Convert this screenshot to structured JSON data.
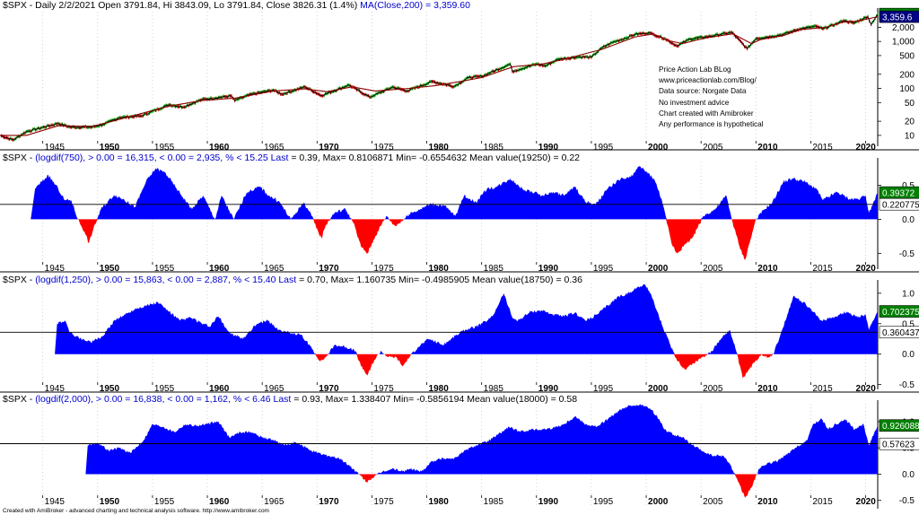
{
  "colors": {
    "background": "#ffffff",
    "positive_fill": "#0000ff",
    "negative_fill": "#ff0000",
    "price_line": "#000000",
    "ma_line": "#8b0000",
    "up_bar": "#00aa00",
    "down_bar": "#cc0000",
    "grid": "#c8c8c8",
    "last_label": "#008000",
    "ma_label": "#000080"
  },
  "footer": "Created with AmiBroker - advanced charting and technical analysis software. http://www.amibroker.com",
  "notes": [
    "Price Action Lab BLog",
    "www.priceactionlab.com/Blog/",
    "Data source: Norgate Data",
    "No investment advice",
    "Chart created with Amibroker",
    "Any performance is hypothetical"
  ],
  "x_ticks": [
    "1945",
    "1950",
    "1955",
    "1960",
    "1965",
    "1970",
    "1975",
    "1980",
    "1985",
    "1990",
    "1995",
    "2000",
    "2005",
    "2010",
    "2015",
    "2020"
  ],
  "x_ticks_bold": [
    "1950",
    "1960",
    "1970",
    "1980",
    "1990",
    "2000",
    "2010",
    "2020"
  ],
  "chart_data": [
    {
      "type": "line",
      "title": "$SPX - Daily 2/2/2021 Open 3791.84, Hi 3843.09, Lo 3791.84, Close 3826.31 (1.4%) MA(Close,200) = 3,359.60",
      "title_parts": [
        "$SPX - Daily 2/2/2021 Open 3791.84, Hi 3843.09, Lo 3791.84, Close 3826.31 (1.4%) ",
        "MA(Close,200) = 3,359.60"
      ],
      "y_scale": "log",
      "ylim": [
        7,
        4300
      ],
      "y_ticks": [
        "10",
        "20",
        "50",
        "100",
        "200",
        "500",
        "1,000",
        "2,000"
      ],
      "y_tick_values": [
        10,
        20,
        50,
        100,
        200,
        500,
        1000,
        2000
      ],
      "last_labels": [
        {
          "text": "3,826.31",
          "value": 3826.31,
          "kind": "last"
        },
        {
          "text": "3,359.6",
          "value": 3359.6,
          "kind": "ma"
        }
      ],
      "series": [
        {
          "name": "$SPX",
          "x": [
            1941.1,
            1942.3,
            1943.5,
            1946.4,
            1947.5,
            1949.5,
            1950.5,
            1952.0,
            1954.0,
            1956.5,
            1957.8,
            1959.5,
            1962.2,
            1962.5,
            1964.0,
            1966.0,
            1966.8,
            1968.9,
            1970.4,
            1972.9,
            1974.8,
            1976.9,
            1978.2,
            1980.5,
            1982.5,
            1983.8,
            1985.0,
            1987.6,
            1987.8,
            1990.0,
            1990.8,
            1992.0,
            1994.0,
            1995.0,
            1996.0,
            1997.0,
            1998.0,
            1999.0,
            2000.2,
            2000.7,
            2001.7,
            2002.8,
            2004.0,
            2005.5,
            2007.8,
            2009.2,
            2010.0,
            2011.5,
            2012.5,
            2014.0,
            2015.5,
            2016.1,
            2017.5,
            2018.0,
            2018.9,
            2020.2,
            2020.5,
            2021.1
          ],
          "y": [
            10,
            8,
            12,
            18,
            15,
            15,
            17,
            24,
            26,
            45,
            40,
            58,
            69,
            55,
            75,
            92,
            75,
            108,
            70,
            118,
            65,
            107,
            88,
            140,
            110,
            170,
            180,
            330,
            230,
            330,
            300,
            420,
            470,
            460,
            740,
            970,
            1150,
            1420,
            1520,
            1400,
            1150,
            800,
            1130,
            1250,
            1560,
            700,
            1150,
            1280,
            1420,
            1850,
            2100,
            1850,
            2450,
            2800,
            2450,
            3380,
            2300,
            3826.31
          ]
        },
        {
          "name": "MA(Close,200)",
          "x": [
            1941.1,
            1943.5,
            1946.4,
            1949.5,
            1952.0,
            1956.5,
            1959.5,
            1962.5,
            1966.0,
            1968.9,
            1970.9,
            1973.2,
            1975.3,
            1978.4,
            1980.8,
            1983.0,
            1985.0,
            1987.9,
            1990.5,
            1992.2,
            1996.0,
            1999.0,
            2000.6,
            2002.0,
            2003.3,
            2005.5,
            2007.9,
            2009.6,
            2010.5,
            2012.5,
            2014.0,
            2016.3,
            2018.0,
            2019.2,
            2021.1
          ],
          "y": [
            10,
            10,
            16,
            15.5,
            22,
            42,
            55,
            62,
            88,
            98,
            85,
            108,
            88,
            100,
            115,
            140,
            170,
            290,
            330,
            400,
            680,
            1250,
            1440,
            1050,
            900,
            1200,
            1450,
            900,
            1110,
            1330,
            1780,
            1980,
            2590,
            2690,
            3359.6
          ]
        }
      ]
    },
    {
      "type": "area",
      "title": "$SPX - (logdif(750),  > 0.00 = 16,315,  < 0.00 = 2,935,  % <  15.25 Last  = 0.39, Max= 0.8106871  Min= -0.6554632  Mean value(19250) = 0.22",
      "title_parts": [
        "$SPX - ",
        "(logdif(750),  > 0.00 = 16,315,  < 0.00 = 2,935,  % <  15.25 Last ",
        " = 0.39, Max= 0.8106871  Min= -0.6554632  Mean value(19250) = 0.22"
      ],
      "ylim": [
        -0.68,
        0.85
      ],
      "y_ticks": [
        "0.5",
        "0.0",
        "-0.5"
      ],
      "y_tick_values": [
        0.5,
        0.0,
        -0.5
      ],
      "reference_line": 0.22,
      "last_labels": [
        {
          "text": "0.39372",
          "value": 0.39372,
          "kind": "last"
        },
        {
          "text": "0.220775",
          "value": 0.220775,
          "kind": "mean"
        }
      ],
      "x": [
        1943.9,
        1944.3,
        1945.5,
        1946.4,
        1947.0,
        1947.6,
        1948.2,
        1948.8,
        1949.2,
        1949.6,
        1950.3,
        1951.5,
        1952.3,
        1953.4,
        1954.4,
        1955.3,
        1956.2,
        1957.2,
        1958.6,
        1959.6,
        1960.7,
        1961.3,
        1962.4,
        1963.6,
        1964.8,
        1965.6,
        1966.6,
        1967.6,
        1968.8,
        1969.5,
        1970.1,
        1970.4,
        1970.8,
        1971.6,
        1972.6,
        1973.3,
        1974.0,
        1974.6,
        1975.3,
        1976.3,
        1977.1,
        1977.9,
        1978.4,
        1979.4,
        1980.4,
        1981.6,
        1982.6,
        1983.4,
        1984.5,
        1985.5,
        1986.4,
        1987.6,
        1988.7,
        1989.6,
        1990.6,
        1991.5,
        1992.5,
        1993.5,
        1994.5,
        1995.4,
        1996.5,
        1997.5,
        1998.6,
        1999.4,
        2000.0,
        2000.7,
        2001.4,
        2002.3,
        2002.8,
        2003.7,
        2004.3,
        2005.2,
        2006.3,
        2007.3,
        2007.8,
        2008.5,
        2009.0,
        2009.5,
        2010.0,
        2010.8,
        2011.5,
        2012.5,
        2013.3,
        2014.5,
        2015.5,
        2016.1,
        2017.4,
        2018.5,
        2019.3,
        2020.0,
        2020.3,
        2020.7,
        2021.1
      ],
      "y": [
        0.0,
        0.45,
        0.65,
        0.45,
        0.28,
        0.28,
        0.0,
        -0.18,
        -0.35,
        -0.15,
        0.15,
        0.36,
        0.3,
        0.18,
        0.55,
        0.75,
        0.68,
        0.45,
        0.15,
        0.35,
        0.0,
        0.35,
        0.0,
        0.4,
        0.48,
        0.35,
        0.25,
        0.0,
        0.25,
        0.05,
        -0.18,
        -0.28,
        -0.08,
        0.1,
        0.15,
        -0.05,
        -0.4,
        -0.5,
        -0.25,
        0.05,
        -0.1,
        0.0,
        0.08,
        0.15,
        0.23,
        0.2,
        0.05,
        0.35,
        0.25,
        0.45,
        0.48,
        0.6,
        0.45,
        0.4,
        0.35,
        0.4,
        0.35,
        0.48,
        0.25,
        0.22,
        0.45,
        0.58,
        0.62,
        0.78,
        0.7,
        0.6,
        0.3,
        -0.35,
        -0.5,
        -0.35,
        -0.25,
        0.05,
        0.15,
        0.35,
        0.0,
        -0.4,
        -0.6,
        -0.3,
        0.0,
        0.15,
        0.25,
        0.55,
        0.6,
        0.55,
        0.45,
        0.28,
        0.4,
        0.3,
        0.3,
        0.35,
        0.1,
        0.25,
        0.39
      ]
    },
    {
      "type": "area",
      "title": "$SPX - (logdif(1,250),  > 0.00 = 15,863,  < 0.00 = 2,887,  % <  15.40 Last  = 0.70, Max= 1.160735  Min= -0.4985905  Mean value(18750) = 0.36",
      "title_parts": [
        "$SPX - ",
        "(logdif(1,250),  > 0.00 = 15,863,  < 0.00 = 2,887,  % <  15.40 Last ",
        " = 0.70, Max= 1.160735  Min= -0.4985905  Mean value(18750) = 0.36"
      ],
      "ylim": [
        -0.52,
        1.16
      ],
      "y_ticks": [
        "1.0",
        "0.5",
        "0.0",
        "-0.5"
      ],
      "y_tick_values": [
        1.0,
        0.5,
        0.0,
        -0.5
      ],
      "reference_line": 0.36,
      "last_labels": [
        {
          "text": "0.702375",
          "value": 0.702375,
          "kind": "last"
        },
        {
          "text": "0.360437",
          "value": 0.360437,
          "kind": "mean"
        }
      ],
      "x": [
        1946.1,
        1946.3,
        1947.0,
        1947.5,
        1948.5,
        1949.5,
        1950.5,
        1951.5,
        1952.5,
        1953.5,
        1954.5,
        1955.5,
        1956.5,
        1957.5,
        1958.5,
        1959.5,
        1960.2,
        1961.0,
        1962.0,
        1963.2,
        1964.5,
        1965.5,
        1966.5,
        1967.5,
        1968.5,
        1969.5,
        1970.3,
        1970.8,
        1971.6,
        1972.6,
        1973.5,
        1974.0,
        1974.6,
        1975.2,
        1975.8,
        1976.5,
        1977.2,
        1977.8,
        1978.4,
        1979.2,
        1980.2,
        1981.5,
        1982.6,
        1983.5,
        1984.5,
        1985.5,
        1986.0,
        1987.0,
        1987.8,
        1988.3,
        1989.5,
        1990.5,
        1991.5,
        1992.5,
        1993.5,
        1994.5,
        1995.5,
        1996.5,
        1997.5,
        1998.5,
        1999.2,
        1999.8,
        2000.4,
        2001.0,
        2001.6,
        2002.2,
        2002.8,
        2003.5,
        2004.3,
        2005.1,
        2006.0,
        2007.0,
        2007.6,
        2008.2,
        2008.8,
        2009.4,
        2010.0,
        2010.5,
        2011.1,
        2011.6,
        2012.2,
        2012.8,
        2013.4,
        2014.3,
        2015.2,
        2016.0,
        2017.2,
        2018.3,
        2019.3,
        2020.0,
        2020.3,
        2020.7,
        2021.1
      ],
      "y": [
        0.0,
        0.5,
        0.55,
        0.35,
        0.25,
        0.2,
        0.3,
        0.55,
        0.65,
        0.75,
        0.8,
        0.85,
        0.7,
        0.55,
        0.6,
        0.5,
        0.45,
        0.62,
        0.35,
        0.25,
        0.5,
        0.55,
        0.4,
        0.35,
        0.32,
        0.1,
        -0.12,
        -0.05,
        0.15,
        0.12,
        0.05,
        -0.2,
        -0.35,
        -0.1,
        0.05,
        -0.05,
        -0.05,
        -0.2,
        -0.05,
        0.12,
        0.25,
        0.15,
        0.3,
        0.4,
        0.45,
        0.55,
        0.62,
        1.0,
        0.6,
        0.55,
        0.7,
        0.72,
        0.65,
        0.62,
        0.68,
        0.55,
        0.65,
        0.8,
        0.95,
        1.0,
        1.1,
        1.15,
        1.0,
        0.7,
        0.4,
        0.15,
        -0.1,
        -0.25,
        -0.15,
        -0.05,
        0.05,
        0.3,
        0.4,
        0.05,
        -0.4,
        -0.25,
        -0.1,
        0.0,
        -0.05,
        0.0,
        0.3,
        0.6,
        0.95,
        0.85,
        0.7,
        0.55,
        0.62,
        0.7,
        0.6,
        0.65,
        0.4,
        0.55,
        0.7
      ]
    },
    {
      "type": "area",
      "title": "$SPX - (logdif(2,000),  > 0.00 = 16,838,  < 0.00 = 1,162,  % <  6.46 Last  = 0.93, Max= 1.338407  Min= -0.5856194  Mean value(18000) = 0.58",
      "title_parts": [
        "$SPX - ",
        "(logdif(2,000),  > 0.00 = 16,838,  < 0.00 = 1,162,  % <  6.46 Last ",
        " = 0.93, Max= 1.338407  Min= -0.5856194  Mean value(18000) = 0.58"
      ],
      "ylim": [
        -0.59,
        1.34
      ],
      "y_ticks": [
        "1.0",
        "0.5",
        "0.0",
        "-0.5"
      ],
      "y_tick_values": [
        1.0,
        0.5,
        0.0,
        -0.5
      ],
      "reference_line": 0.58,
      "last_labels": [
        {
          "text": "0.926088",
          "value": 0.926088,
          "kind": "last"
        },
        {
          "text": "0.57623",
          "value": 0.57623,
          "kind": "mean"
        }
      ],
      "x": [
        1948.9,
        1949.1,
        1950.0,
        1951.0,
        1952.0,
        1953.0,
        1954.2,
        1955.0,
        1956.0,
        1957.0,
        1958.0,
        1959.0,
        1960.0,
        1961.0,
        1962.0,
        1963.0,
        1964.0,
        1965.0,
        1966.0,
        1967.0,
        1968.0,
        1969.0,
        1970.0,
        1971.0,
        1972.0,
        1973.0,
        1973.8,
        1974.5,
        1975.2,
        1976.0,
        1977.0,
        1977.8,
        1978.5,
        1979.5,
        1980.5,
        1981.5,
        1982.5,
        1983.5,
        1984.5,
        1985.5,
        1986.5,
        1987.5,
        1988.5,
        1989.5,
        1990.5,
        1991.5,
        1992.5,
        1993.5,
        1994.5,
        1995.5,
        1996.5,
        1997.5,
        1998.5,
        1999.5,
        2000.3,
        2001.0,
        2001.7,
        2002.5,
        2003.3,
        2004.2,
        2005.0,
        2006.0,
        2007.0,
        2007.6,
        2008.3,
        2009.0,
        2009.6,
        2010.3,
        2011.0,
        2012.0,
        2013.0,
        2014.0,
        2014.7,
        2015.2,
        2016.0,
        2016.6,
        2017.3,
        2018.1,
        2019.0,
        2019.8,
        2020.3,
        2021.1
      ],
      "y": [
        0.0,
        0.55,
        0.6,
        0.45,
        0.5,
        0.4,
        0.65,
        0.95,
        0.9,
        0.8,
        0.95,
        0.92,
        0.95,
        1.0,
        0.7,
        0.8,
        0.8,
        0.7,
        0.65,
        0.55,
        0.6,
        0.5,
        0.4,
        0.35,
        0.3,
        0.15,
        0.0,
        -0.15,
        -0.05,
        0.05,
        0.1,
        0.05,
        0.1,
        0.05,
        0.25,
        0.3,
        0.3,
        0.45,
        0.55,
        0.62,
        0.75,
        0.9,
        0.8,
        0.85,
        0.85,
        0.88,
        0.95,
        1.1,
        0.95,
        0.9,
        1.05,
        1.2,
        1.3,
        1.33,
        1.25,
        1.1,
        0.85,
        0.75,
        0.7,
        0.55,
        0.45,
        0.35,
        0.35,
        0.2,
        -0.1,
        -0.45,
        -0.25,
        0.1,
        0.2,
        0.25,
        0.4,
        0.55,
        0.65,
        0.95,
        1.05,
        0.85,
        0.95,
        1.05,
        0.85,
        0.95,
        0.55,
        0.93
      ]
    }
  ]
}
